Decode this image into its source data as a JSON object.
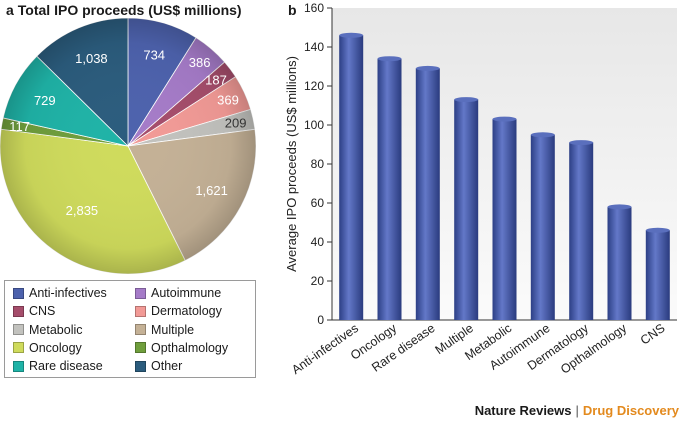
{
  "panel_a": {
    "letter": "a",
    "title": "Total IPO proceeds (US$ millions)"
  },
  "panel_b": {
    "letter": "b"
  },
  "footer": {
    "journal": "Nature Reviews",
    "separator": "|",
    "section": "Drug Discovery"
  },
  "legend": {
    "items": [
      {
        "label": "Anti-infectives",
        "color": "#4d62ad"
      },
      {
        "label": "Autoimmune",
        "color": "#a57bc8"
      },
      {
        "label": "CNS",
        "color": "#a54d6b"
      },
      {
        "label": "Dermatology",
        "color": "#f29a96"
      },
      {
        "label": "Metabolic",
        "color": "#c2c2be"
      },
      {
        "label": "Multiple",
        "color": "#c4b196"
      },
      {
        "label": "Oncology",
        "color": "#cfdb5c"
      },
      {
        "label": "Opthalmology",
        "color": "#6f9e3c"
      },
      {
        "label": "Rare disease",
        "color": "#1fb3a7"
      },
      {
        "label": "Other",
        "color": "#2b5c7d"
      }
    ]
  },
  "chart_data": [
    {
      "type": "pie",
      "title": "Total IPO proceeds (US$ millions)",
      "slices": [
        {
          "label": "Anti-infectives",
          "value": 734,
          "display": "734",
          "color": "#4d62ad"
        },
        {
          "label": "Autoimmune",
          "value": 386,
          "display": "386",
          "color": "#a57bc8"
        },
        {
          "label": "CNS",
          "value": 187,
          "display": "187",
          "color": "#a54d6b"
        },
        {
          "label": "Dermatology",
          "value": 369,
          "display": "369",
          "color": "#f29a96"
        },
        {
          "label": "Metabolic",
          "value": 209,
          "display": "209",
          "color": "#c2c2be"
        },
        {
          "label": "Multiple",
          "value": 1621,
          "display": "1,621",
          "color": "#c4b196"
        },
        {
          "label": "Oncology",
          "value": 2835,
          "display": "2,835",
          "color": "#cfdb5c"
        },
        {
          "label": "Opthalmology",
          "value": 117,
          "display": "117",
          "color": "#6f9e3c"
        },
        {
          "label": "Rare disease",
          "value": 729,
          "display": "729",
          "color": "#1fb3a7"
        },
        {
          "label": "Other",
          "value": 1038,
          "display": "1,038",
          "color": "#2b5c7d"
        }
      ]
    },
    {
      "type": "bar",
      "categories": [
        "Anti-infectives",
        "Oncology",
        "Rare disease",
        "Multiple",
        "Metabolic",
        "Autoimmune",
        "Dermatology",
        "Opthalmology",
        "CNS"
      ],
      "values": [
        146,
        134,
        129,
        113,
        103,
        95,
        91,
        58,
        46
      ],
      "ylabel": "Average IPO proceeds (US$ millions)",
      "xlabel": "",
      "ylim": [
        0,
        160
      ],
      "yticks": [
        "0",
        "20",
        "40",
        "60",
        "80",
        "100",
        "120",
        "140",
        "160"
      ],
      "bar_color": "#3f55a0"
    }
  ]
}
